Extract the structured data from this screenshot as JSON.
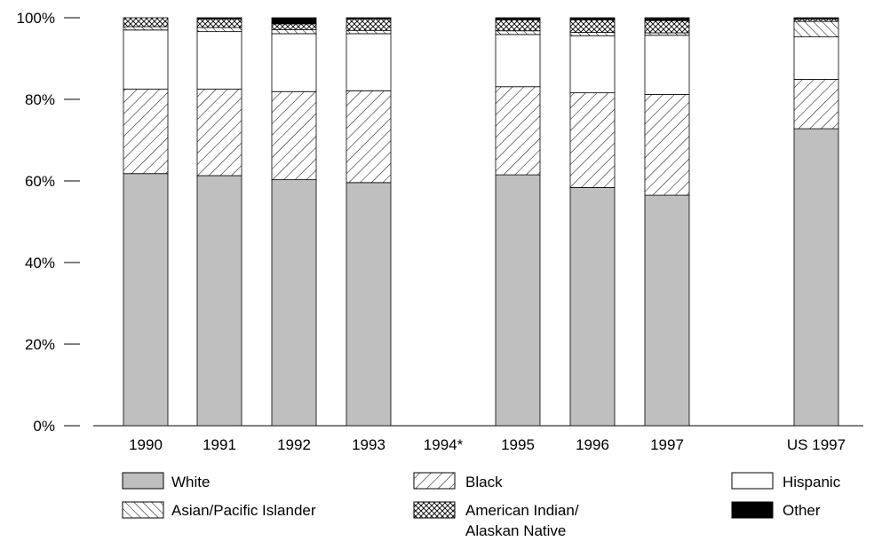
{
  "chart_data": {
    "type": "bar",
    "stacked": true,
    "percent": true,
    "categories": [
      "1990",
      "1991",
      "1992",
      "1993",
      "1994*",
      "1995",
      "1996",
      "1997",
      "US 1997"
    ],
    "series": [
      {
        "name": "White",
        "values": [
          61.8,
          61.3,
          60.3,
          59.6,
          null,
          61.5,
          58.4,
          56.5,
          72.8
        ]
      },
      {
        "name": "Black",
        "values": [
          20.7,
          21.2,
          21.6,
          22.5,
          null,
          21.6,
          23.2,
          24.7,
          12.1
        ]
      },
      {
        "name": "Hispanic",
        "values": [
          14.5,
          14.1,
          14.2,
          14.0,
          null,
          12.8,
          14.0,
          14.5,
          10.4
        ]
      },
      {
        "name": "Asian/Pacific Islander",
        "values": [
          0.8,
          1.0,
          1.0,
          0.8,
          null,
          0.9,
          0.8,
          0.6,
          3.8
        ]
      },
      {
        "name": "American Indian/\nAlaskan Native",
        "values": [
          2.2,
          2.1,
          1.4,
          2.8,
          null,
          2.7,
          3.1,
          3.0,
          0.6
        ]
      },
      {
        "name": "Other",
        "values": [
          0.0,
          0.3,
          1.5,
          0.3,
          null,
          0.5,
          0.5,
          0.7,
          0.3
        ]
      }
    ],
    "ylim": [
      0,
      100
    ],
    "yticks": [
      "0%",
      "20%",
      "40%",
      "60%",
      "80%",
      "100%"
    ],
    "legend": "bottom",
    "grid": false,
    "colors": {
      "white": "#bfbfbf",
      "hispanic": "#ffffff",
      "other": "#000000",
      "outline": "#000000"
    }
  }
}
